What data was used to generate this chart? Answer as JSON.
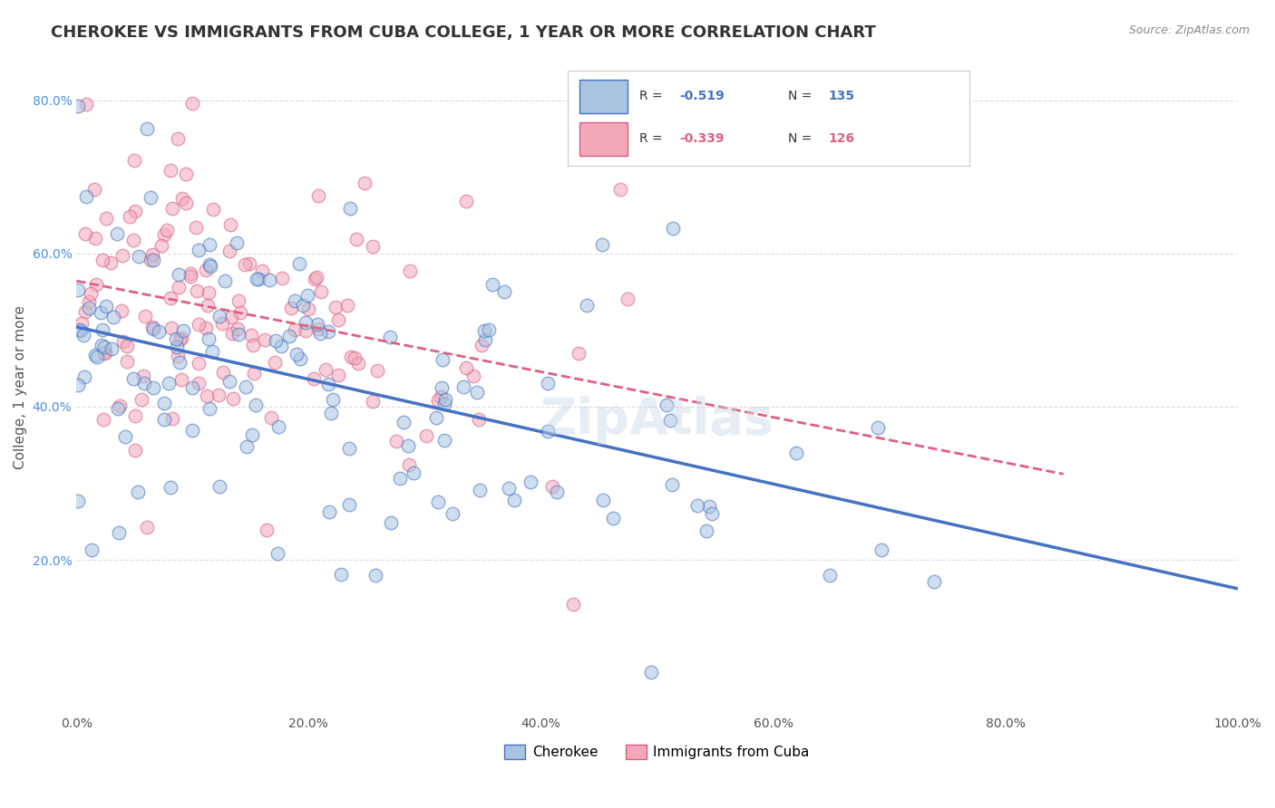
{
  "title": "CHEROKEE VS IMMIGRANTS FROM CUBA COLLEGE, 1 YEAR OR MORE CORRELATION CHART",
  "source_text": "Source: ZipAtlas.com",
  "ylabel": "College, 1 year or more",
  "xmin": 0.0,
  "xmax": 1.0,
  "ymin": 0.0,
  "ymax": 0.85,
  "xticks": [
    0.0,
    0.2,
    0.4,
    0.6,
    0.8,
    1.0
  ],
  "xticklabels": [
    "0.0%",
    "20.0%",
    "40.0%",
    "60.0%",
    "80.0%",
    "100.0%"
  ],
  "yticks": [
    0.2,
    0.4,
    0.6,
    0.8
  ],
  "yticklabels": [
    "20.0%",
    "40.0%",
    "60.0%",
    "80.0%"
  ],
  "cherokee_color": "#a8c4e0",
  "cuba_color": "#f4a7b9",
  "cherokee_line_color": "#4472c4",
  "cuba_line_color": "#e06080",
  "cherokee_R": -0.519,
  "cherokee_N": 135,
  "cuba_R": -0.339,
  "cuba_N": 126,
  "legend_label_cherokee": "Cherokee",
  "legend_label_cuba": "Immigrants from Cuba",
  "grid_color": "#dddddd",
  "background_color": "#ffffff",
  "watermark_text": "ZipAtlas",
  "title_fontsize": 13,
  "axis_label_fontsize": 11,
  "tick_fontsize": 10,
  "legend_fontsize": 11,
  "source_fontsize": 9
}
